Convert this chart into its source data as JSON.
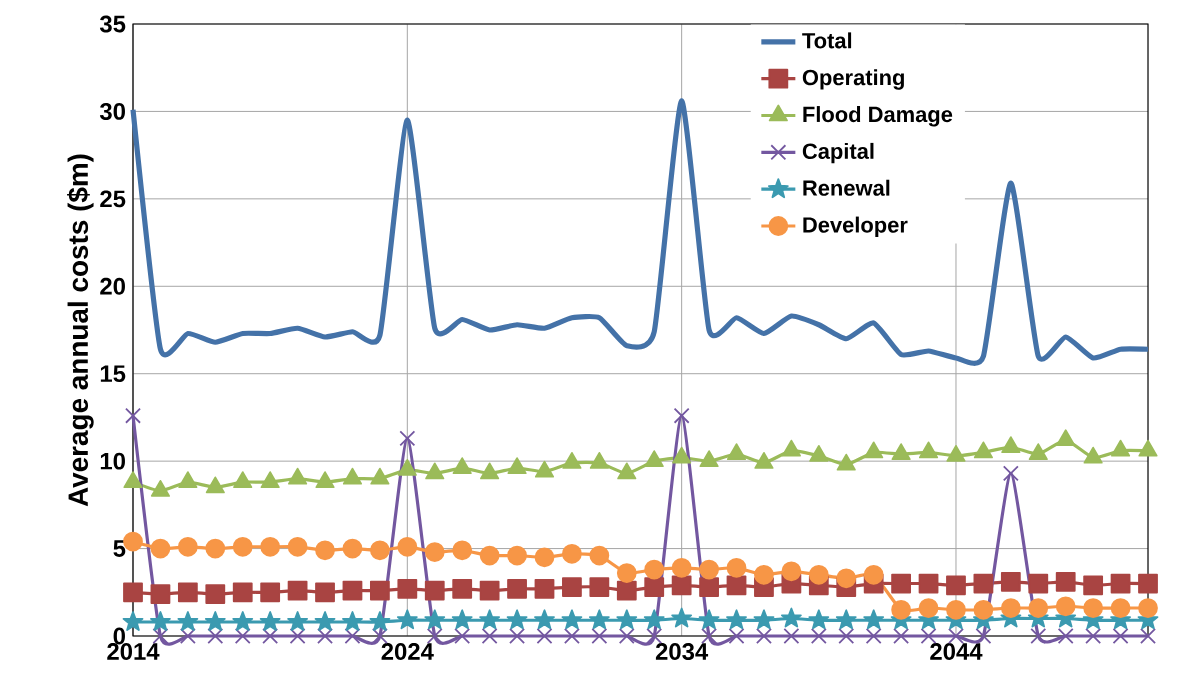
{
  "chart_data": {
    "type": "line",
    "ylabel": "Average annual costs ($m)",
    "x": [
      2014,
      2015,
      2016,
      2017,
      2018,
      2019,
      2020,
      2021,
      2022,
      2023,
      2024,
      2025,
      2026,
      2027,
      2028,
      2029,
      2030,
      2031,
      2032,
      2033,
      2034,
      2035,
      2036,
      2037,
      2038,
      2039,
      2040,
      2041,
      2042,
      2043,
      2044,
      2045,
      2046,
      2047,
      2048,
      2049,
      2050,
      2051
    ],
    "series": [
      {
        "name": "Total",
        "color": "#4472a8",
        "marker": "none",
        "values": [
          30.1,
          16.4,
          17.3,
          16.8,
          17.3,
          17.3,
          17.6,
          17.1,
          17.4,
          17.2,
          29.5,
          17.6,
          18.1,
          17.5,
          17.8,
          17.6,
          18.2,
          18.2,
          16.6,
          17.4,
          30.6,
          17.5,
          18.2,
          17.3,
          18.3,
          17.8,
          17.0,
          17.9,
          16.1,
          16.3,
          15.9,
          16.0,
          25.9,
          16.0,
          17.1,
          15.9,
          16.4,
          16.4
        ]
      },
      {
        "name": "Operating",
        "color": "#a94442",
        "marker": "square",
        "values": [
          2.5,
          2.4,
          2.5,
          2.4,
          2.5,
          2.5,
          2.6,
          2.5,
          2.6,
          2.6,
          2.7,
          2.6,
          2.7,
          2.6,
          2.7,
          2.7,
          2.8,
          2.8,
          2.6,
          2.8,
          2.9,
          2.8,
          2.9,
          2.8,
          3.0,
          2.9,
          2.8,
          3.0,
          3.0,
          3.0,
          2.9,
          3.0,
          3.1,
          3.0,
          3.1,
          2.9,
          3.0,
          3.0
        ]
      },
      {
        "name": "Flood Damage",
        "color": "#9bbb59",
        "marker": "triangle",
        "values": [
          8.8,
          8.3,
          8.8,
          8.5,
          8.8,
          8.8,
          9.0,
          8.8,
          9.0,
          9.0,
          9.5,
          9.3,
          9.6,
          9.3,
          9.6,
          9.4,
          9.9,
          9.9,
          9.3,
          10.0,
          10.2,
          10.0,
          10.4,
          9.9,
          10.6,
          10.3,
          9.8,
          10.5,
          10.4,
          10.5,
          10.3,
          10.5,
          10.8,
          10.4,
          11.2,
          10.2,
          10.6,
          10.6
        ]
      },
      {
        "name": "Capital",
        "color": "#7357a0",
        "marker": "cross",
        "values": [
          12.6,
          0,
          0,
          0,
          0,
          0,
          0,
          0,
          0,
          0,
          11.3,
          0,
          0,
          0,
          0,
          0,
          0,
          0,
          0,
          0,
          12.6,
          0,
          0,
          0,
          0,
          0,
          0,
          0,
          0,
          0,
          0,
          0,
          9.3,
          0,
          0,
          0,
          0,
          0
        ]
      },
      {
        "name": "Renewal",
        "color": "#3b9ab0",
        "marker": "star",
        "values": [
          0.8,
          0.8,
          0.8,
          0.8,
          0.8,
          0.8,
          0.8,
          0.8,
          0.8,
          0.8,
          0.9,
          0.9,
          0.9,
          0.9,
          0.9,
          0.9,
          0.9,
          0.9,
          0.9,
          0.9,
          1.0,
          0.9,
          0.9,
          0.9,
          1.0,
          0.9,
          0.9,
          0.9,
          0.9,
          0.9,
          0.9,
          0.9,
          1.0,
          1.0,
          1.0,
          0.9,
          0.9,
          0.9
        ]
      },
      {
        "name": "Developer",
        "color": "#f79646",
        "marker": "circle",
        "values": [
          5.4,
          5.0,
          5.1,
          5.0,
          5.1,
          5.1,
          5.1,
          4.9,
          5.0,
          4.9,
          5.1,
          4.8,
          4.9,
          4.6,
          4.6,
          4.5,
          4.7,
          4.6,
          3.6,
          3.8,
          3.9,
          3.8,
          3.9,
          3.5,
          3.7,
          3.5,
          3.3,
          3.5,
          1.5,
          1.6,
          1.5,
          1.5,
          1.6,
          1.6,
          1.7,
          1.6,
          1.6,
          1.6
        ]
      }
    ],
    "xlim": [
      2014,
      2051
    ],
    "ylim": [
      0,
      35
    ],
    "xticks": [
      2014,
      2024,
      2034,
      2044
    ],
    "yticks": [
      0,
      5,
      10,
      15,
      20,
      25,
      30,
      35
    ],
    "grid": true,
    "legend": "top right",
    "line_style": "solid"
  }
}
